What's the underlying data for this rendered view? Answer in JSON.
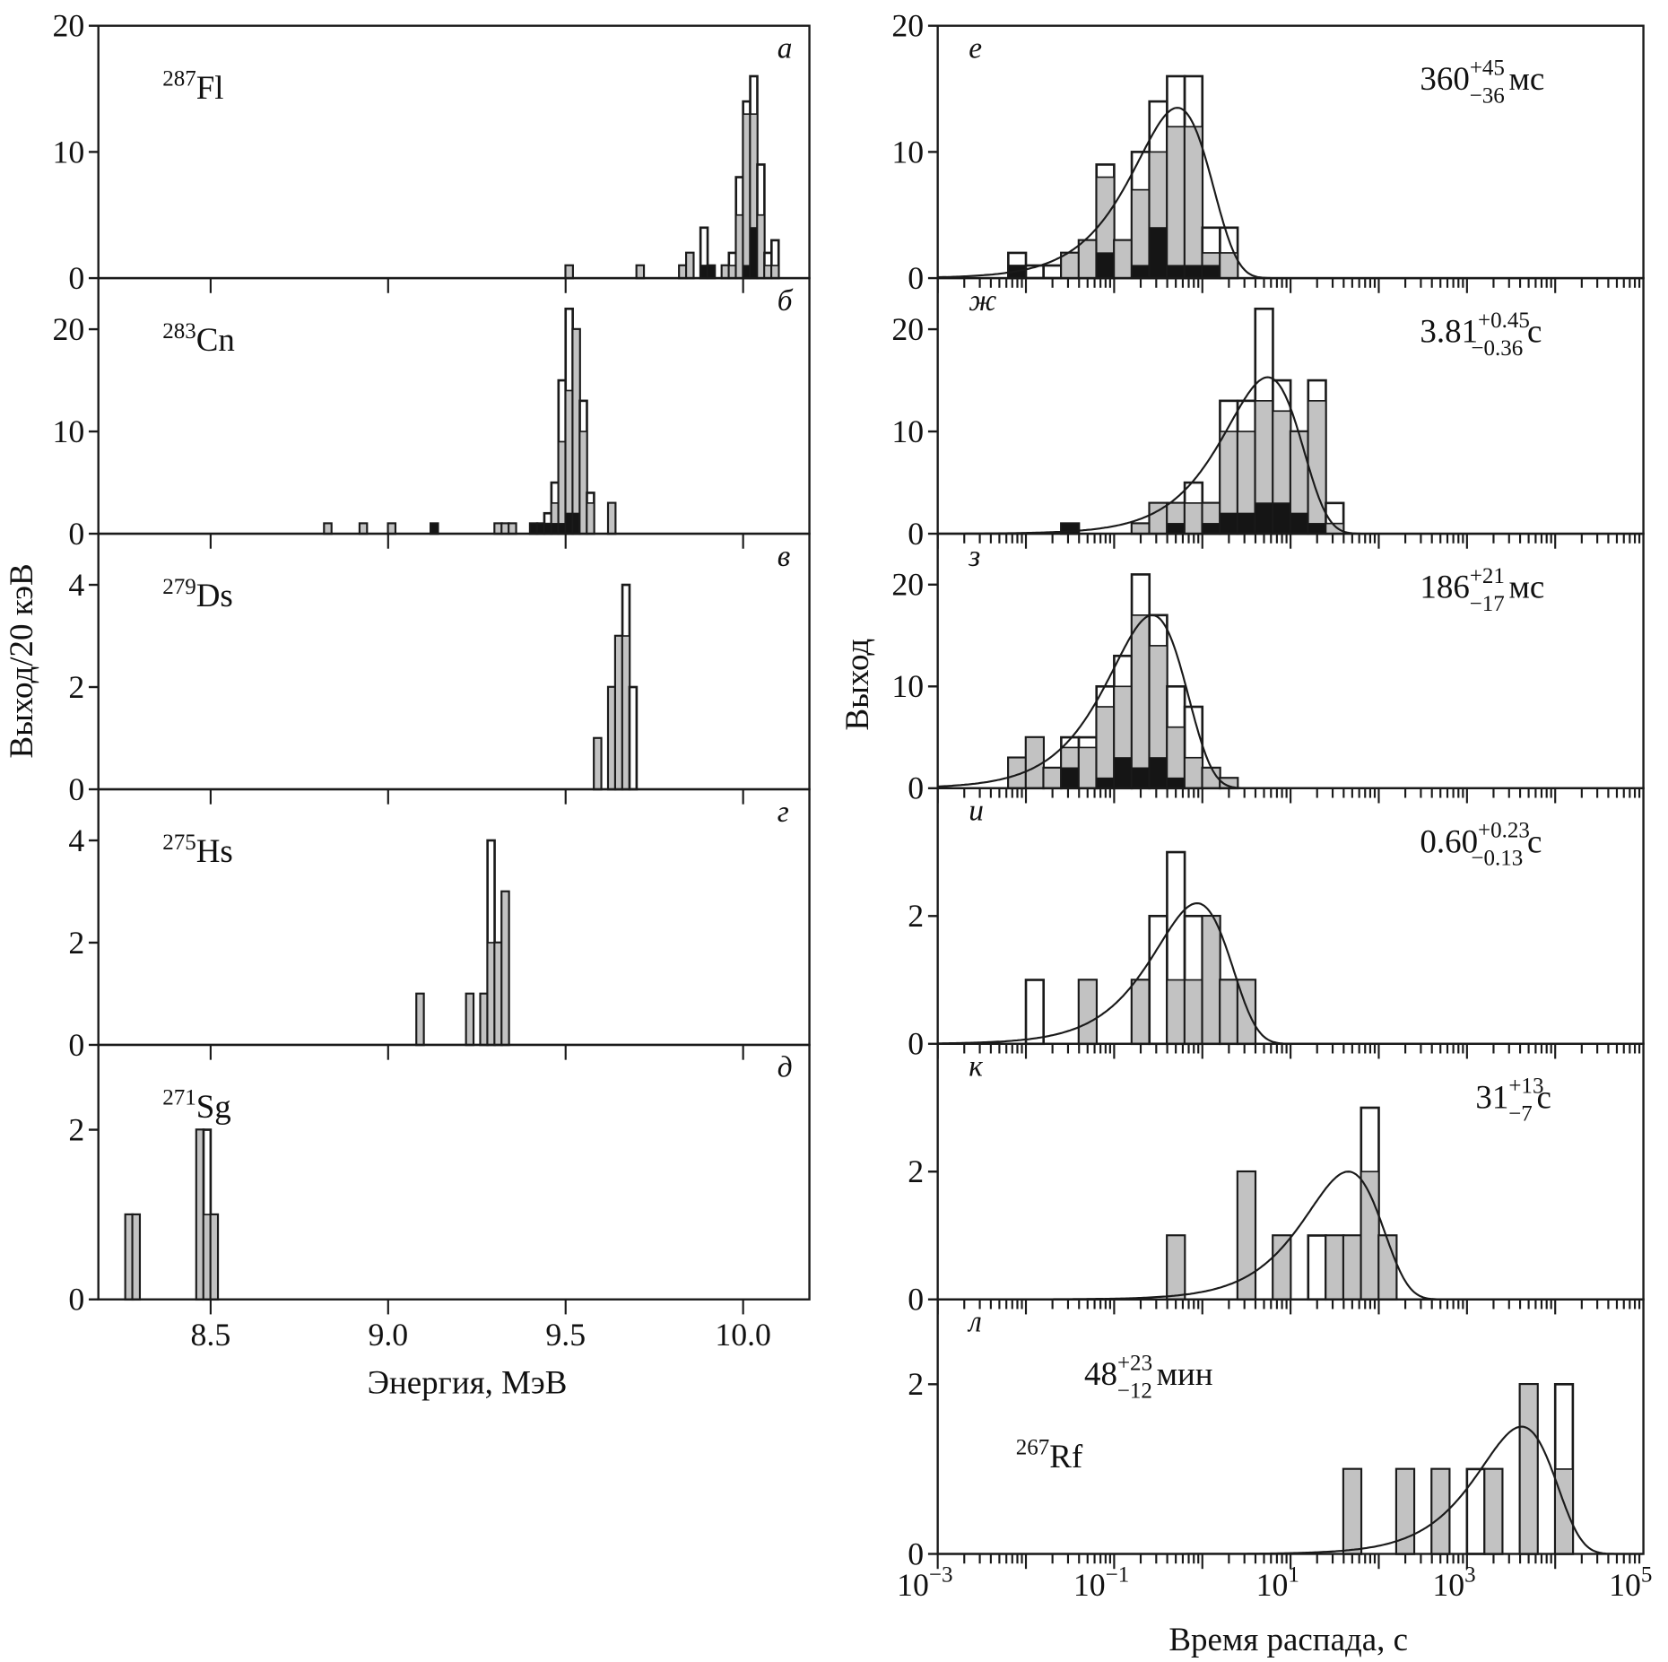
{
  "chart_data": {
    "type": "bar",
    "energy_panels": {
      "ylabel": "Выход/20 кэВ",
      "xlabel": "Энергия, МэВ",
      "xlim": [
        8.18,
        10.19
      ],
      "xticks": [
        "8.5",
        "9.0",
        "9.5",
        "10.0"
      ],
      "xtick_values": [
        8.5,
        9.0,
        9.5,
        10.0
      ],
      "bin_width_mev": 0.02,
      "bin_format": [
        "energy_left_edge",
        "total",
        "gray",
        "black"
      ],
      "panels": [
        {
          "letter": "а",
          "isotope_mass": "287",
          "isotope": "Fl",
          "ylim": [
            0,
            20
          ],
          "yticks": [
            "0",
            "10",
            "20"
          ],
          "bins": [
            [
              9.5,
              1,
              1,
              0
            ],
            [
              9.7,
              1,
              1,
              0
            ],
            [
              9.82,
              1,
              1,
              0
            ],
            [
              9.84,
              2,
              2,
              0
            ],
            [
              9.88,
              4,
              1,
              1
            ],
            [
              9.9,
              1,
              1,
              1
            ],
            [
              9.94,
              1,
              1,
              0
            ],
            [
              9.96,
              2,
              1,
              0
            ],
            [
              9.98,
              8,
              5,
              0
            ],
            [
              10.0,
              14,
              13,
              1
            ],
            [
              10.02,
              16,
              13,
              4
            ],
            [
              10.04,
              9,
              5,
              0
            ],
            [
              10.06,
              2,
              1,
              0
            ],
            [
              10.08,
              3,
              1,
              0
            ]
          ]
        },
        {
          "letter": "б",
          "isotope_mass": "283",
          "isotope": "Cn",
          "ylim": [
            0,
            25
          ],
          "yticks": [
            "0",
            "10",
            "20"
          ],
          "bins": [
            [
              8.82,
              1,
              1,
              0
            ],
            [
              8.92,
              1,
              1,
              0
            ],
            [
              9.0,
              1,
              1,
              0
            ],
            [
              9.12,
              1,
              1,
              1
            ],
            [
              9.3,
              1,
              1,
              0
            ],
            [
              9.32,
              1,
              1,
              0
            ],
            [
              9.34,
              1,
              1,
              0
            ],
            [
              9.4,
              1,
              1,
              1
            ],
            [
              9.42,
              1,
              1,
              1
            ],
            [
              9.44,
              2,
              1,
              1
            ],
            [
              9.46,
              5,
              3,
              1
            ],
            [
              9.48,
              15,
              9,
              1
            ],
            [
              9.5,
              22,
              14,
              2
            ],
            [
              9.52,
              20,
              20,
              2
            ],
            [
              9.54,
              13,
              10,
              0
            ],
            [
              9.56,
              4,
              3,
              0
            ],
            [
              9.62,
              3,
              3,
              0
            ]
          ]
        },
        {
          "letter": "в",
          "isotope_mass": "279",
          "isotope": "Ds",
          "ylim": [
            0,
            5
          ],
          "yticks": [
            "0",
            "2",
            "4"
          ],
          "bins": [
            [
              9.58,
              1,
              1,
              0
            ],
            [
              9.62,
              2,
              2,
              0
            ],
            [
              9.64,
              3,
              3,
              0
            ],
            [
              9.66,
              4,
              3,
              0
            ],
            [
              9.68,
              2,
              0,
              0
            ]
          ]
        },
        {
          "letter": "г",
          "isotope_mass": "275",
          "isotope": "Hs",
          "ylim": [
            0,
            5
          ],
          "yticks": [
            "0",
            "2",
            "4"
          ],
          "bins": [
            [
              9.08,
              1,
              1,
              0
            ],
            [
              9.22,
              1,
              1,
              0
            ],
            [
              9.26,
              1,
              1,
              0
            ],
            [
              9.28,
              4,
              2,
              0
            ],
            [
              9.3,
              2,
              2,
              0
            ],
            [
              9.32,
              3,
              3,
              0
            ]
          ]
        },
        {
          "letter": "д",
          "isotope_mass": "271",
          "isotope": "Sg",
          "ylim": [
            0,
            3
          ],
          "yticks": [
            "0",
            "2"
          ],
          "bins": [
            [
              8.26,
              1,
              1,
              0
            ],
            [
              8.28,
              1,
              1,
              0
            ],
            [
              8.46,
              2,
              2,
              0
            ],
            [
              8.48,
              2,
              1,
              0
            ],
            [
              8.5,
              1,
              1,
              0
            ]
          ]
        }
      ]
    },
    "time_panels": {
      "ylabel": "Выход",
      "xlabel": "Время распада, с",
      "xscale": "log",
      "xlim": [
        0.001,
        100000
      ],
      "xticks": [
        {
          "base": "10",
          "exp": "−3"
        },
        {
          "base": "10",
          "exp": "−1"
        },
        {
          "base": "10",
          "exp": "1"
        },
        {
          "base": "10",
          "exp": "3"
        },
        {
          "base": "10",
          "exp": "5"
        }
      ],
      "xtick_values": [
        0.001,
        0.1,
        10,
        1000,
        100000
      ],
      "bin_width_decades": 0.2,
      "bin_format": [
        "log10_time_left_edge",
        "total",
        "gray",
        "black"
      ],
      "panels": [
        {
          "letter": "е",
          "half_life": {
            "value": "360",
            "plus": "+45",
            "minus": "−36",
            "unit": "мс"
          },
          "ylim": [
            0,
            20
          ],
          "yticks": [
            "0",
            "10",
            "20"
          ],
          "fit": {
            "peak_yield": 13.5,
            "peak_time_s": 0.52
          },
          "bins": [
            [
              -2.2,
              2,
              1,
              1
            ],
            [
              -2.0,
              1,
              0,
              0
            ],
            [
              -1.8,
              1,
              0,
              0
            ],
            [
              -1.6,
              2,
              2,
              0
            ],
            [
              -1.4,
              3,
              3,
              0
            ],
            [
              -1.2,
              9,
              8,
              2
            ],
            [
              -1.0,
              3,
              3,
              0
            ],
            [
              -0.8,
              10,
              7,
              1
            ],
            [
              -0.6,
              14,
              10,
              4
            ],
            [
              -0.4,
              16,
              12,
              1
            ],
            [
              -0.2,
              16,
              12,
              1
            ],
            [
              0.0,
              4,
              2,
              1
            ],
            [
              0.2,
              4,
              2,
              0
            ]
          ]
        },
        {
          "letter": "ж",
          "half_life": {
            "value": "3.81",
            "plus": "+0.45",
            "minus": "−0.36",
            "unit": "с"
          },
          "ylim": [
            0,
            25
          ],
          "yticks": [
            "0",
            "10",
            "20"
          ],
          "fit": {
            "peak_yield": 15.3,
            "peak_time_s": 5.5
          },
          "bins": [
            [
              -1.6,
              1,
              1,
              1
            ],
            [
              -0.8,
              1,
              1,
              0
            ],
            [
              -0.6,
              3,
              3,
              0
            ],
            [
              -0.4,
              3,
              3,
              1
            ],
            [
              -0.2,
              5,
              3,
              0
            ],
            [
              0.0,
              3,
              3,
              1
            ],
            [
              0.2,
              13,
              10,
              2
            ],
            [
              0.4,
              13,
              10,
              2
            ],
            [
              0.6,
              22,
              13,
              3
            ],
            [
              0.8,
              15,
              12,
              3
            ],
            [
              1.0,
              10,
              10,
              2
            ],
            [
              1.2,
              15,
              13,
              1
            ],
            [
              1.4,
              3,
              1,
              0
            ]
          ]
        },
        {
          "letter": "з",
          "half_life": {
            "value": "186",
            "plus": "+21",
            "minus": "−17",
            "unit": "мс"
          },
          "ylim": [
            0,
            25
          ],
          "yticks": [
            "0",
            "10",
            "20"
          ],
          "fit": {
            "peak_yield": 17,
            "peak_time_s": 0.27
          },
          "bins": [
            [
              -2.2,
              3,
              3,
              0
            ],
            [
              -2.0,
              5,
              5,
              0
            ],
            [
              -1.8,
              2,
              2,
              0
            ],
            [
              -1.6,
              5,
              4,
              2
            ],
            [
              -1.4,
              5,
              4,
              0
            ],
            [
              -1.2,
              10,
              8,
              1
            ],
            [
              -1.0,
              13,
              10,
              3
            ],
            [
              -0.8,
              21,
              17,
              2
            ],
            [
              -0.6,
              17,
              14,
              3
            ],
            [
              -0.4,
              10,
              6,
              1
            ],
            [
              -0.2,
              8,
              3,
              0
            ],
            [
              0.0,
              2,
              2,
              0
            ],
            [
              0.2,
              1,
              1,
              0
            ]
          ]
        },
        {
          "letter": "и",
          "half_life": {
            "value": "0.60",
            "plus": "+0.23",
            "minus": "−0.13",
            "unit": "с"
          },
          "ylim": [
            0,
            4
          ],
          "yticks": [
            "0",
            "2"
          ],
          "fit": {
            "peak_yield": 2.2,
            "peak_time_s": 0.87
          },
          "bins": [
            [
              -2.0,
              1,
              0,
              0
            ],
            [
              -1.4,
              1,
              1,
              0
            ],
            [
              -0.8,
              1,
              1,
              0
            ],
            [
              -0.6,
              2,
              0,
              0
            ],
            [
              -0.4,
              3,
              1,
              0
            ],
            [
              -0.2,
              2,
              1,
              0
            ],
            [
              0.0,
              2,
              2,
              0
            ],
            [
              0.2,
              1,
              1,
              0
            ],
            [
              0.4,
              1,
              1,
              0
            ]
          ]
        },
        {
          "letter": "к",
          "half_life": {
            "value": "31",
            "plus": "+13",
            "minus": "−7",
            "unit": "с"
          },
          "ylim": [
            0,
            4
          ],
          "yticks": [
            "0",
            "2"
          ],
          "fit": {
            "peak_yield": 2.0,
            "peak_time_s": 45
          },
          "bins": [
            [
              -0.4,
              1,
              1,
              0
            ],
            [
              0.4,
              2,
              2,
              0
            ],
            [
              0.8,
              1,
              1,
              0
            ],
            [
              1.2,
              1,
              0,
              0
            ],
            [
              1.4,
              1,
              1,
              0
            ],
            [
              1.6,
              1,
              1,
              0
            ],
            [
              1.8,
              3,
              2,
              0
            ],
            [
              2.0,
              1,
              1,
              0
            ]
          ]
        },
        {
          "letter": "л",
          "half_life": {
            "value": "48",
            "plus": "+23",
            "minus": "−12",
            "unit": "мин"
          },
          "isotope_mass": "267",
          "isotope": "Rf",
          "ylim": [
            0,
            3
          ],
          "yticks": [
            "0",
            "2"
          ],
          "fit": {
            "peak_yield": 1.5,
            "peak_time_s": 4155
          },
          "bins": [
            [
              1.6,
              1,
              1,
              0
            ],
            [
              2.2,
              1,
              1,
              0
            ],
            [
              2.6,
              1,
              1,
              0
            ],
            [
              3.0,
              1,
              0,
              0
            ],
            [
              3.2,
              1,
              1,
              0
            ],
            [
              3.6,
              2,
              2,
              0
            ],
            [
              4.0,
              2,
              1,
              0
            ]
          ]
        }
      ]
    },
    "colors": {
      "total": "#ffffff",
      "gray": "#c2c2c2",
      "black": "#151515",
      "line": "#1a1a1a"
    }
  }
}
